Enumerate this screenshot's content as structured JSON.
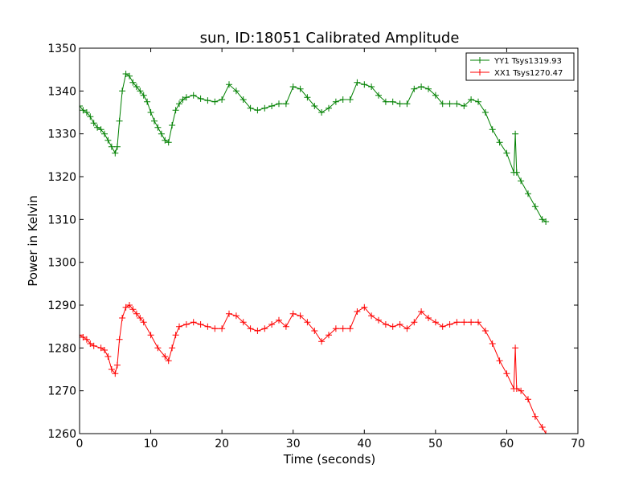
{
  "chart_data": {
    "type": "line",
    "title": "sun, ID:18051 Calibrated Amplitude",
    "xlabel": "Time (seconds)",
    "ylabel": "Power in Kelvin",
    "xlim": [
      0,
      70
    ],
    "ylim": [
      1260,
      1350
    ],
    "x_ticks": [
      "0",
      "10",
      "20",
      "30",
      "40",
      "50",
      "60",
      "70"
    ],
    "y_ticks": [
      "1260",
      "1270",
      "1280",
      "1290",
      "1300",
      "1310",
      "1320",
      "1330",
      "1340",
      "1350"
    ],
    "grid": false,
    "legend_position": "top-right",
    "marker": "+",
    "series": [
      {
        "name": "YY1 Tsys1319.93",
        "color": "#008000",
        "points": [
          [
            0,
            1336.5
          ],
          [
            0.5,
            1335.5
          ],
          [
            1,
            1335
          ],
          [
            1.5,
            1334
          ],
          [
            2,
            1332.5
          ],
          [
            2.5,
            1331.5
          ],
          [
            3,
            1331
          ],
          [
            3.5,
            1330
          ],
          [
            4,
            1328.5
          ],
          [
            4.5,
            1327
          ],
          [
            5,
            1325.5
          ],
          [
            5.3,
            1327
          ],
          [
            5.6,
            1333
          ],
          [
            6,
            1340
          ],
          [
            6.5,
            1344
          ],
          [
            7,
            1343.5
          ],
          [
            7.5,
            1342
          ],
          [
            8,
            1341
          ],
          [
            8.5,
            1340
          ],
          [
            9,
            1339
          ],
          [
            9.5,
            1337.5
          ],
          [
            10,
            1335
          ],
          [
            10.5,
            1333
          ],
          [
            11,
            1331.5
          ],
          [
            11.5,
            1330
          ],
          [
            12,
            1328.5
          ],
          [
            12.5,
            1328
          ],
          [
            13,
            1332
          ],
          [
            13.5,
            1335.5
          ],
          [
            14,
            1337
          ],
          [
            14.5,
            1338
          ],
          [
            15,
            1338.5
          ],
          [
            16,
            1339
          ],
          [
            17,
            1338.2
          ],
          [
            18,
            1337.8
          ],
          [
            19,
            1337.5
          ],
          [
            20,
            1338
          ],
          [
            21,
            1341.5
          ],
          [
            22,
            1340
          ],
          [
            23,
            1338
          ],
          [
            24,
            1336
          ],
          [
            25,
            1335.5
          ],
          [
            26,
            1336
          ],
          [
            27,
            1336.5
          ],
          [
            28,
            1337
          ],
          [
            29,
            1337
          ],
          [
            30,
            1341
          ],
          [
            31,
            1340.5
          ],
          [
            32,
            1338.5
          ],
          [
            33,
            1336.5
          ],
          [
            34,
            1335
          ],
          [
            35,
            1336
          ],
          [
            36,
            1337.5
          ],
          [
            37,
            1338
          ],
          [
            38,
            1338
          ],
          [
            39,
            1342
          ],
          [
            40,
            1341.5
          ],
          [
            41,
            1341
          ],
          [
            42,
            1339
          ],
          [
            43,
            1337.5
          ],
          [
            44,
            1337.5
          ],
          [
            45,
            1337
          ],
          [
            46,
            1337
          ],
          [
            47,
            1340.5
          ],
          [
            48,
            1341
          ],
          [
            49,
            1340.5
          ],
          [
            50,
            1339
          ],
          [
            51,
            1337
          ],
          [
            52,
            1337
          ],
          [
            53,
            1337
          ],
          [
            54,
            1336.5
          ],
          [
            55,
            1338
          ],
          [
            56,
            1337.5
          ],
          [
            57,
            1335
          ],
          [
            58,
            1331
          ],
          [
            59,
            1328
          ],
          [
            60,
            1325.5
          ],
          [
            61,
            1321
          ],
          [
            61.2,
            1330
          ],
          [
            61.4,
            1321
          ],
          [
            62,
            1319
          ],
          [
            63,
            1316
          ],
          [
            64,
            1313
          ],
          [
            65,
            1310
          ],
          [
            65.5,
            1309.5
          ]
        ]
      },
      {
        "name": "XX1 Tsys1270.47",
        "color": "#ff0000",
        "points": [
          [
            0,
            1283
          ],
          [
            0.5,
            1282.5
          ],
          [
            1,
            1282
          ],
          [
            1.5,
            1281
          ],
          [
            2,
            1280.5
          ],
          [
            3,
            1280
          ],
          [
            3.5,
            1279.5
          ],
          [
            4,
            1278
          ],
          [
            4.5,
            1275
          ],
          [
            5,
            1274
          ],
          [
            5.3,
            1276
          ],
          [
            5.6,
            1282
          ],
          [
            6,
            1287
          ],
          [
            6.5,
            1289.5
          ],
          [
            7,
            1290
          ],
          [
            7.5,
            1289
          ],
          [
            8,
            1288
          ],
          [
            8.5,
            1287
          ],
          [
            9,
            1286
          ],
          [
            10,
            1283
          ],
          [
            11,
            1280
          ],
          [
            12,
            1278
          ],
          [
            12.5,
            1277
          ],
          [
            13,
            1280
          ],
          [
            13.5,
            1283
          ],
          [
            14,
            1285
          ],
          [
            15,
            1285.5
          ],
          [
            16,
            1286
          ],
          [
            17,
            1285.5
          ],
          [
            18,
            1285
          ],
          [
            19,
            1284.5
          ],
          [
            20,
            1284.5
          ],
          [
            21,
            1288
          ],
          [
            22,
            1287.5
          ],
          [
            23,
            1286
          ],
          [
            24,
            1284.5
          ],
          [
            25,
            1284
          ],
          [
            26,
            1284.5
          ],
          [
            27,
            1285.5
          ],
          [
            28,
            1286.5
          ],
          [
            29,
            1285
          ],
          [
            30,
            1288
          ],
          [
            31,
            1287.5
          ],
          [
            32,
            1286
          ],
          [
            33,
            1284
          ],
          [
            34,
            1281.5
          ],
          [
            35,
            1283
          ],
          [
            36,
            1284.5
          ],
          [
            37,
            1284.5
          ],
          [
            38,
            1284.5
          ],
          [
            39,
            1288.5
          ],
          [
            40,
            1289.5
          ],
          [
            41,
            1287.5
          ],
          [
            42,
            1286.5
          ],
          [
            43,
            1285.5
          ],
          [
            44,
            1285
          ],
          [
            45,
            1285.5
          ],
          [
            46,
            1284.5
          ],
          [
            47,
            1286
          ],
          [
            48,
            1288.5
          ],
          [
            49,
            1287
          ],
          [
            50,
            1286
          ],
          [
            51,
            1285
          ],
          [
            52,
            1285.5
          ],
          [
            53,
            1286
          ],
          [
            54,
            1286
          ],
          [
            55,
            1286
          ],
          [
            56,
            1286
          ],
          [
            57,
            1284
          ],
          [
            58,
            1281
          ],
          [
            59,
            1277
          ],
          [
            60,
            1274
          ],
          [
            61,
            1270.5
          ],
          [
            61.2,
            1280
          ],
          [
            61.4,
            1270.5
          ],
          [
            62,
            1270
          ],
          [
            63,
            1268
          ],
          [
            64,
            1264
          ],
          [
            65,
            1261.5
          ],
          [
            65.5,
            1260
          ]
        ]
      }
    ]
  }
}
